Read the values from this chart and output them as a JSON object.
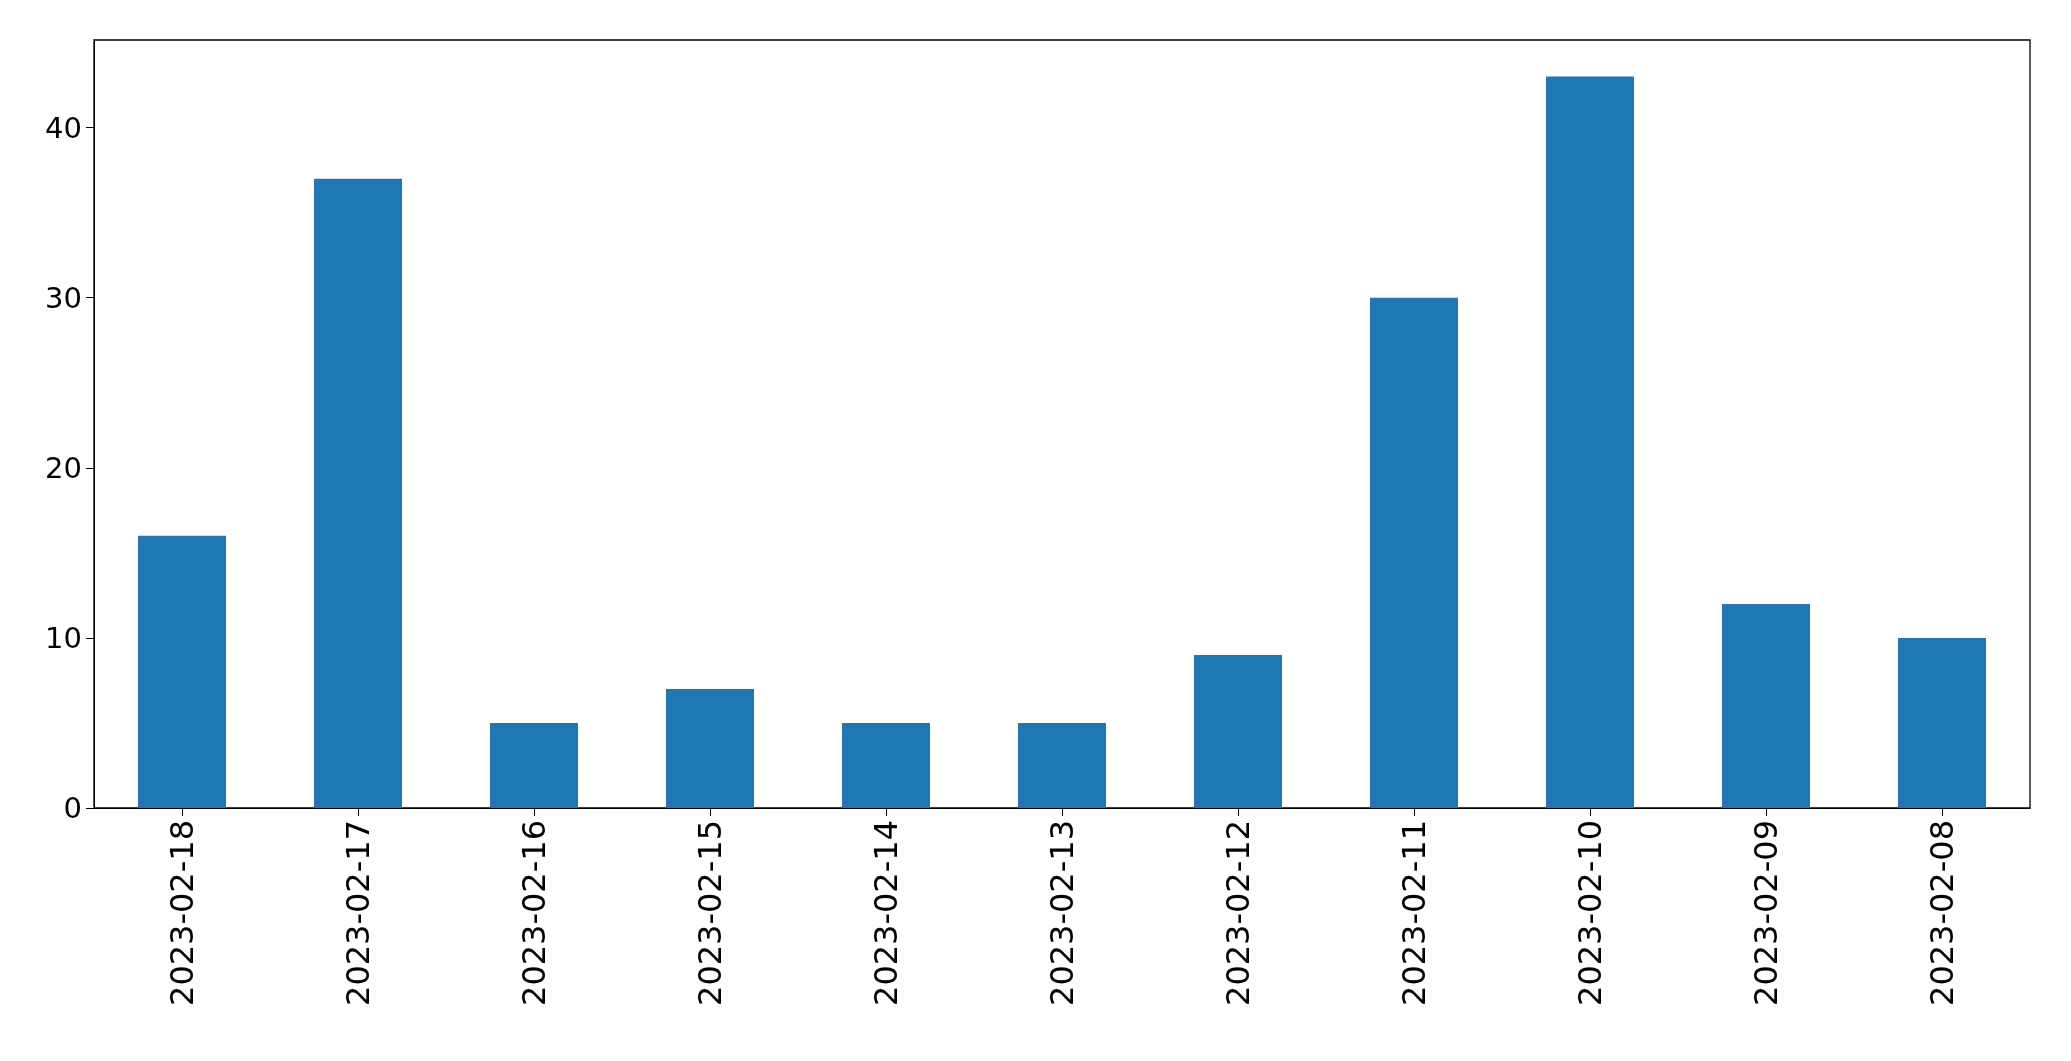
{
  "chart_data": {
    "type": "bar",
    "categories": [
      "2023-02-18",
      "2023-02-17",
      "2023-02-16",
      "2023-02-15",
      "2023-02-14",
      "2023-02-13",
      "2023-02-12",
      "2023-02-11",
      "2023-02-10",
      "2023-02-09",
      "2023-02-08"
    ],
    "values": [
      16,
      37,
      5,
      7,
      5,
      5,
      9,
      30,
      43,
      12,
      10
    ],
    "color": "#1f77b4",
    "ylim": [
      0,
      45.15
    ],
    "yticks": [
      0,
      10,
      20,
      30,
      40
    ]
  }
}
